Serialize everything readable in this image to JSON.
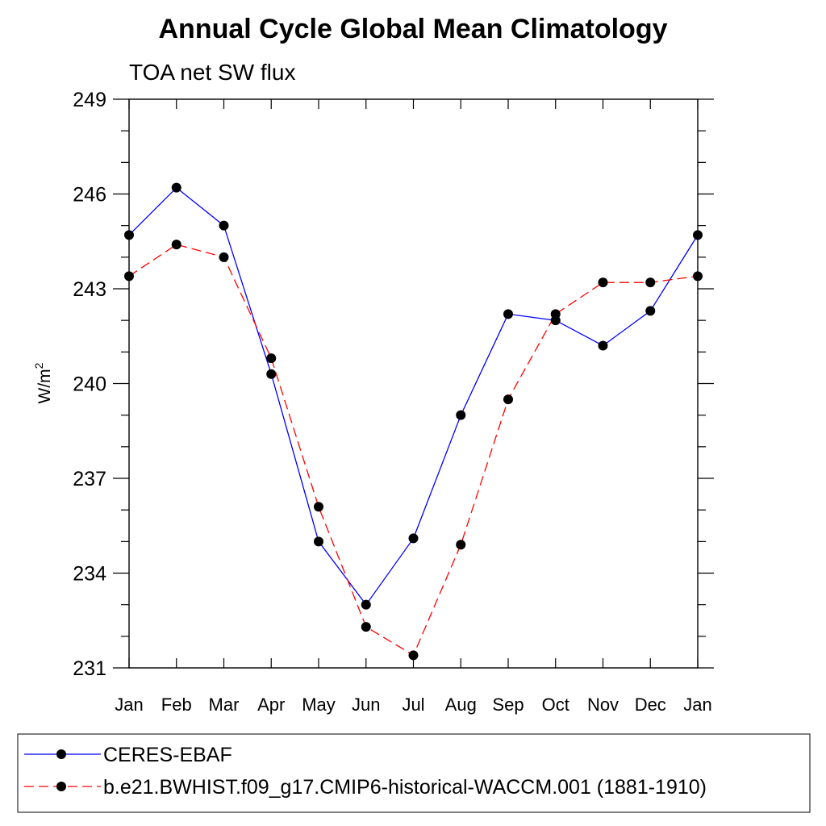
{
  "chart_data": {
    "type": "line",
    "title": "Annual Cycle Global Mean Climatology",
    "subtitle": "TOA net SW flux",
    "xlabel": "",
    "ylabel": "W/m",
    "ylabel_superscript": "2",
    "categories": [
      "Jan",
      "Feb",
      "Mar",
      "Apr",
      "May",
      "Jun",
      "Jul",
      "Aug",
      "Sep",
      "Oct",
      "Nov",
      "Dec",
      "Jan"
    ],
    "yticks": [
      "231",
      "234",
      "237",
      "240",
      "243",
      "246",
      "249"
    ],
    "ylim": [
      231,
      249
    ],
    "grid": false,
    "legend_position": "bottom",
    "series": [
      {
        "name": "CERES-EBAF",
        "color": "#0000ff",
        "line_style": "solid",
        "marker": "filled-circle",
        "values": [
          244.7,
          246.2,
          245.0,
          240.3,
          235.0,
          233.0,
          235.1,
          239.0,
          242.2,
          242.0,
          241.2,
          242.3,
          244.7
        ]
      },
      {
        "name": "b.e21.BWHIST.f09_g17.CMIP6-historical-WACCM.001 (1881-1910)",
        "color": "#ff0000",
        "line_style": "dashed",
        "marker": "filled-circle",
        "values": [
          243.4,
          244.4,
          244.0,
          240.8,
          236.1,
          232.3,
          231.4,
          234.9,
          239.5,
          242.2,
          243.2,
          243.2,
          243.4
        ]
      }
    ]
  }
}
